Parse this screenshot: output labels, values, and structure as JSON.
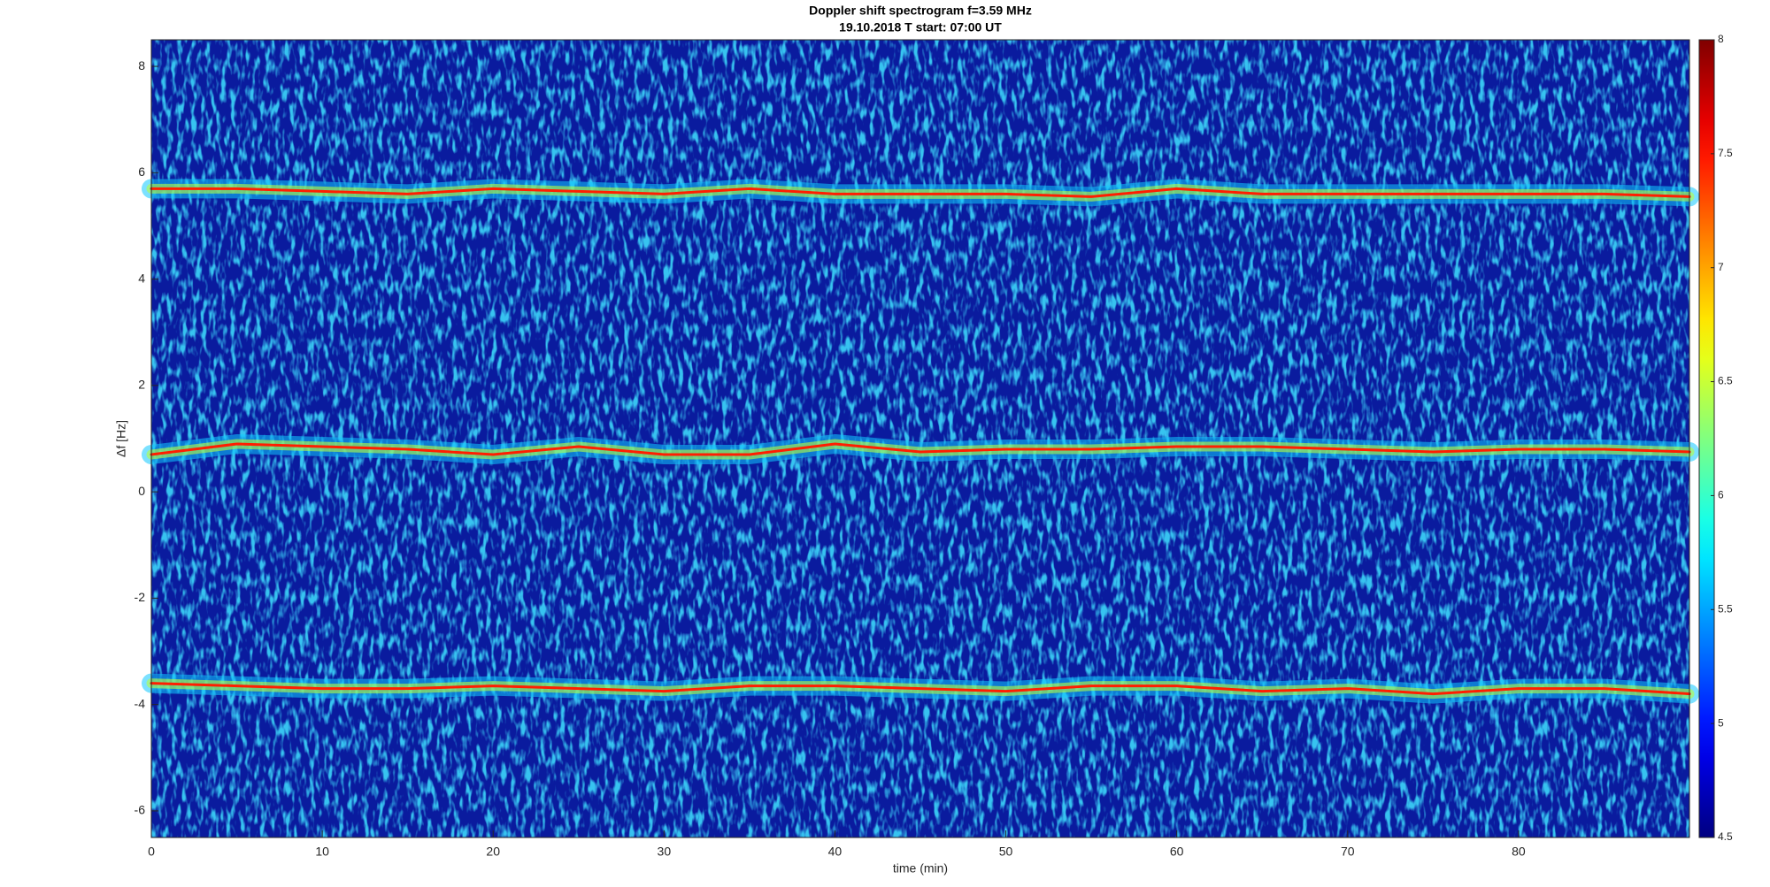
{
  "chart_data": {
    "type": "spectrogram",
    "title": "Doppler shift spectrogram f=3.59 MHz",
    "subtitle": "19.10.2018   T start: 07:00 UT",
    "x_label": "time (min)",
    "y_label": "Δf [Hz]",
    "x": [
      0,
      5,
      10,
      15,
      20,
      25,
      30,
      35,
      40,
      45,
      50,
      55,
      60,
      65,
      70,
      75,
      80,
      85,
      90
    ],
    "series": [
      {
        "color": "#ff1e00",
        "values": [
          5.7,
          5.7,
          5.65,
          5.6,
          5.7,
          5.65,
          5.6,
          5.7,
          5.6,
          5.6,
          5.6,
          5.55,
          5.7,
          5.6,
          5.6,
          5.6,
          5.6,
          5.6,
          5.55
        ]
      },
      {
        "color": "#ff1e00",
        "values": [
          0.7,
          0.9,
          0.85,
          0.8,
          0.7,
          0.85,
          0.7,
          0.7,
          0.9,
          0.75,
          0.8,
          0.8,
          0.85,
          0.85,
          0.8,
          0.75,
          0.8,
          0.8,
          0.75
        ]
      },
      {
        "color": "#ff1e00",
        "values": [
          -3.6,
          -3.65,
          -3.7,
          -3.7,
          -3.65,
          -3.7,
          -3.75,
          -3.65,
          -3.65,
          -3.7,
          -3.75,
          -3.65,
          -3.65,
          -3.75,
          -3.7,
          -3.8,
          -3.7,
          -3.7,
          -3.8
        ]
      }
    ],
    "xlim": [
      0,
      90
    ],
    "xticks": [
      0,
      10,
      20,
      30,
      40,
      50,
      60,
      70,
      80
    ],
    "ylim": [
      -6.5,
      8.5
    ],
    "yticks": [
      -6,
      -4,
      -2,
      0,
      2,
      4,
      6,
      8
    ],
    "colormap": "jet",
    "clim": [
      4.5,
      8
    ],
    "cticks": [
      4.5,
      5,
      5.5,
      6,
      6.5,
      7,
      7.5,
      8
    ]
  }
}
